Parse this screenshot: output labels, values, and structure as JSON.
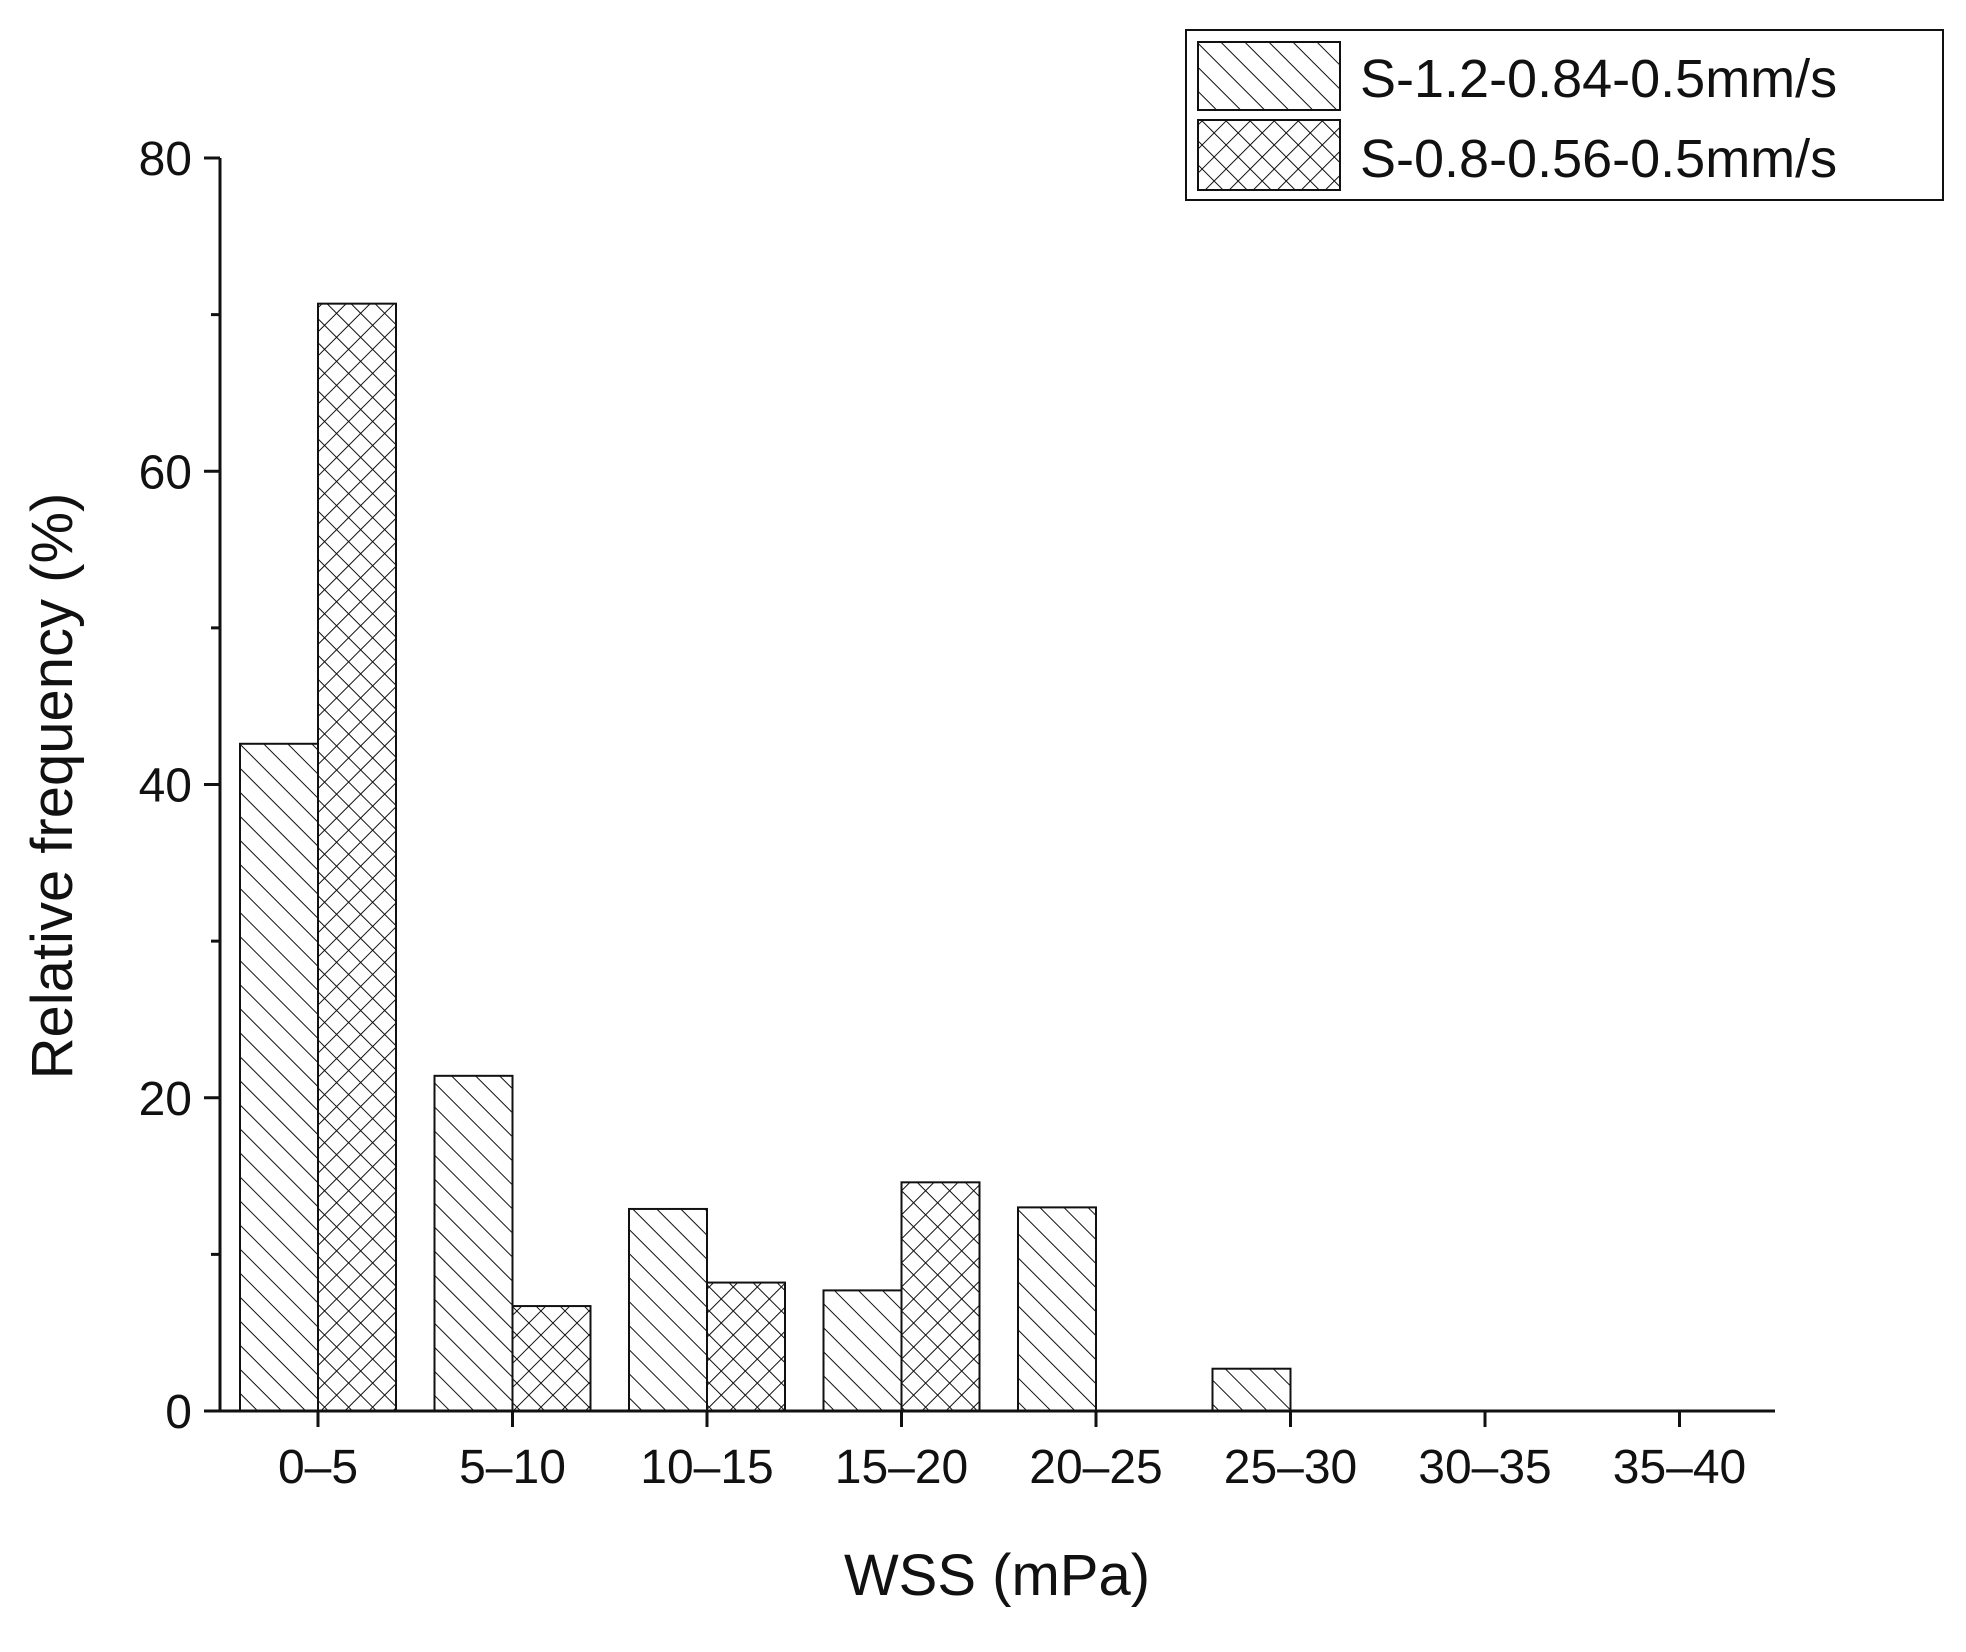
{
  "chart_data": {
    "type": "bar",
    "title": "",
    "xlabel": "WSS (mPa)",
    "ylabel": "Relative frequency (%)",
    "categories": [
      "0–5",
      "5–10",
      "10–15",
      "15–20",
      "20–25",
      "25–30",
      "30–35",
      "35–40"
    ],
    "series": [
      {
        "name": "S-1.2-0.84-0.5mm/s",
        "pattern": "diagonal-hatch",
        "values": [
          42.6,
          21.4,
          12.9,
          7.7,
          13.0,
          2.7,
          0,
          0
        ]
      },
      {
        "name": "S-0.8-0.56-0.5mm/s",
        "pattern": "cross-hatch",
        "values": [
          70.7,
          6.7,
          8.2,
          14.6,
          0,
          0,
          0,
          0
        ]
      }
    ],
    "ylim": [
      0,
      80
    ],
    "yticks": [
      "0",
      "20",
      "40",
      "60",
      "80"
    ],
    "grid": false,
    "legend_position": "top-right"
  },
  "colors": {
    "bar_fill": "#ffffff",
    "bar_stroke": "#111111",
    "axis": "#111111"
  }
}
